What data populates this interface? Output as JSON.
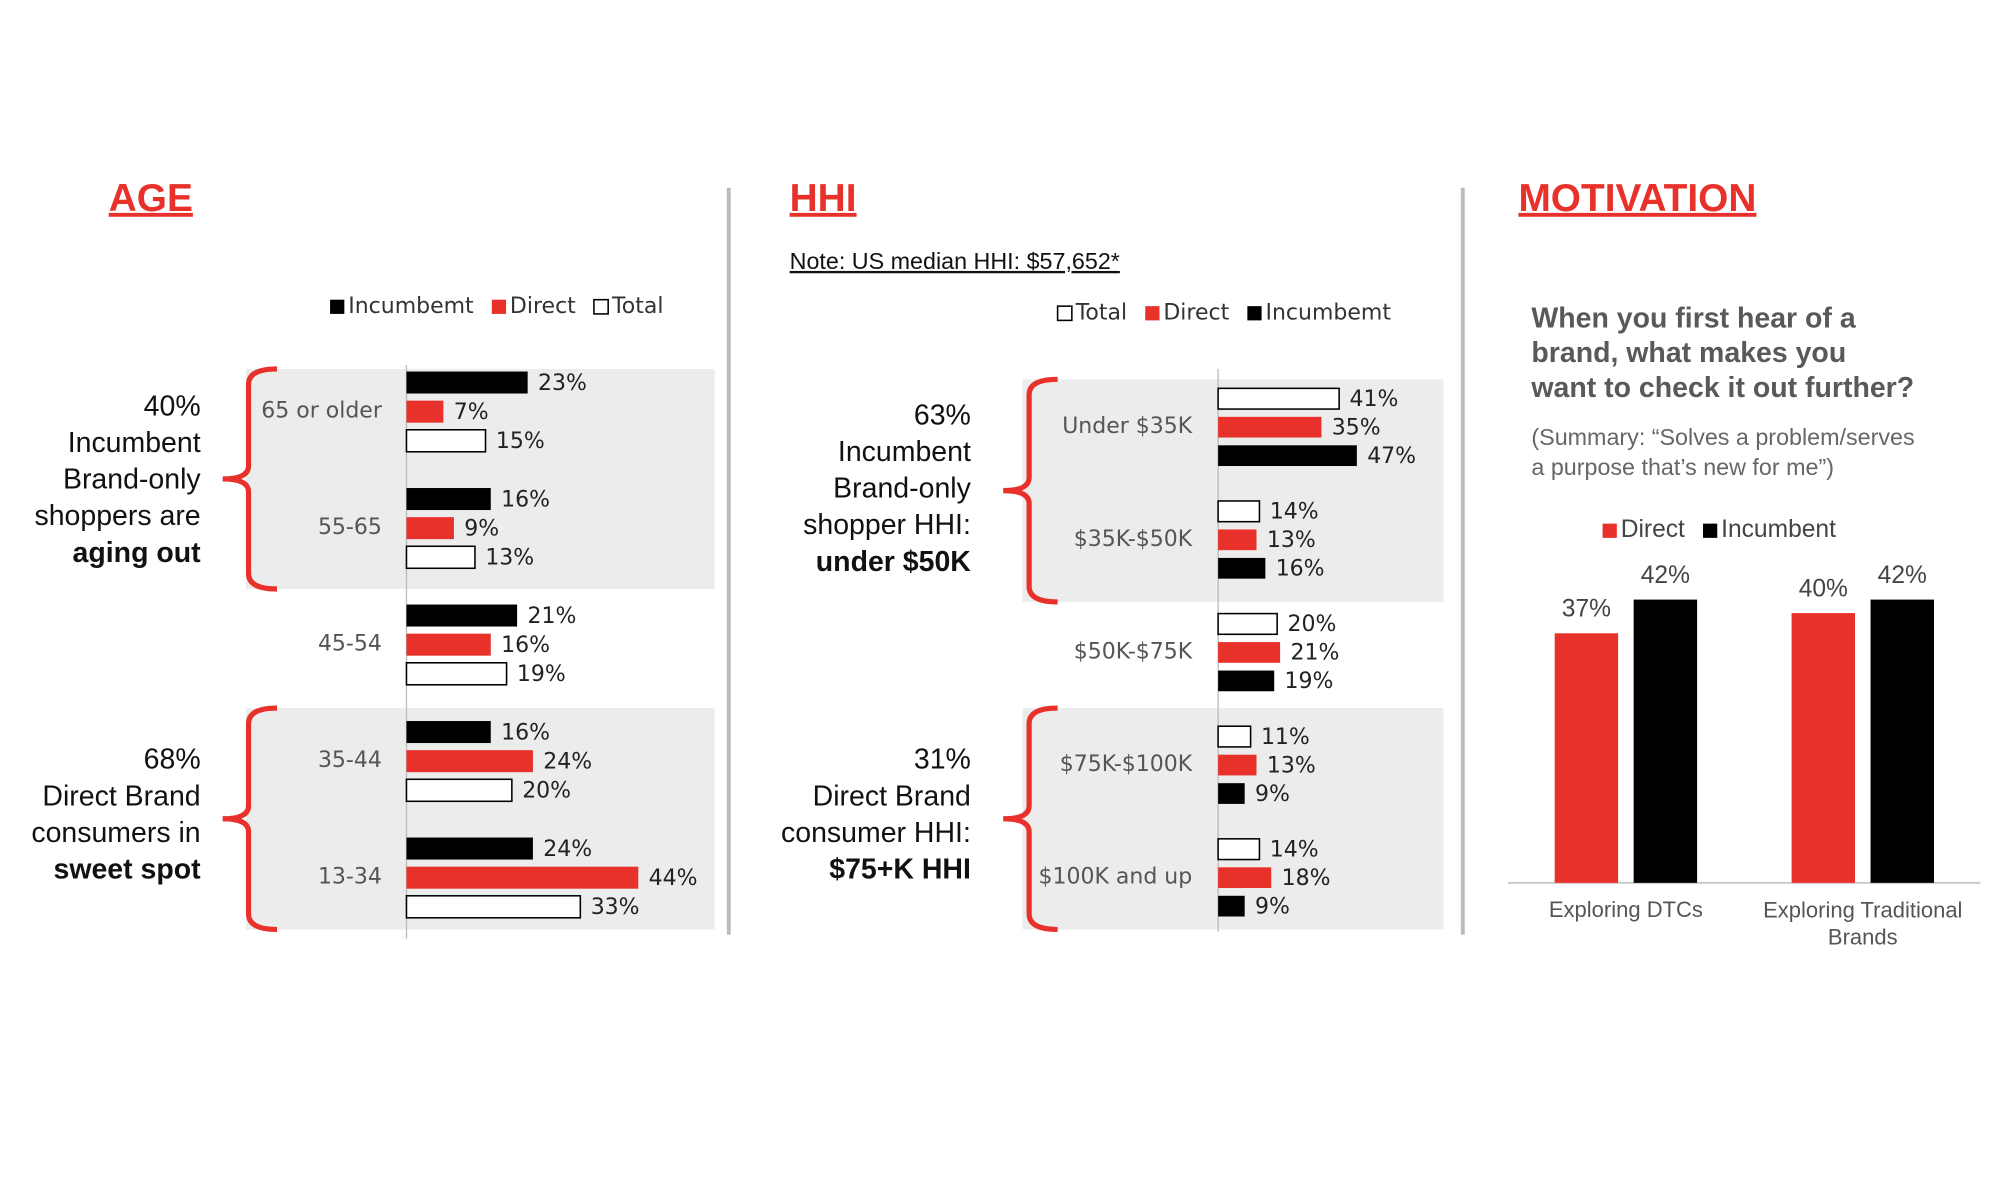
{
  "chart_data": [
    {
      "type": "bar",
      "orientation": "horizontal",
      "title": "AGE",
      "categories": [
        "65 or older",
        "55-65",
        "45-54",
        "35-44",
        "13-34"
      ],
      "series": [
        {
          "name": "Incumbemt",
          "color": "#000000",
          "values": [
            23,
            16,
            21,
            16,
            24
          ],
          "value_labels": [
            "23%",
            "16%",
            "21%",
            "16%",
            "24%"
          ]
        },
        {
          "name": "Direct",
          "color": "#e8312a",
          "values": [
            7,
            9,
            16,
            24,
            44
          ],
          "value_labels": [
            "7%",
            "9%",
            "16%",
            "24%",
            "44%"
          ]
        },
        {
          "name": "Total",
          "color": "#ffffff",
          "values": [
            15,
            13,
            19,
            20,
            33
          ],
          "value_labels": [
            "15%",
            "13%",
            "19%",
            "20%",
            "33%"
          ]
        }
      ],
      "annotations": [
        {
          "lines": [
            "40%",
            "Incumbent",
            "Brand-only",
            "shoppers are",
            "aging out"
          ]
        },
        {
          "lines": [
            "68%",
            "Direct Brand",
            "consumers in",
            "sweet spot"
          ]
        }
      ]
    },
    {
      "type": "bar",
      "orientation": "horizontal",
      "title": "HHI",
      "note": "Note:  US median HHI: $57,652*",
      "categories": [
        "Under $35K",
        "$35K-$50K",
        "$50K-$75K",
        "$75K-$100K",
        "$100K and up"
      ],
      "series": [
        {
          "name": "Total",
          "color": "#ffffff",
          "values": [
            41,
            14,
            20,
            11,
            14
          ],
          "value_labels": [
            "41%",
            "14%",
            "20%",
            "11%",
            "14%"
          ]
        },
        {
          "name": "Direct",
          "color": "#e8312a",
          "values": [
            35,
            13,
            21,
            13,
            18
          ],
          "value_labels": [
            "35%",
            "13%",
            "21%",
            "13%",
            "18%"
          ]
        },
        {
          "name": "Incumbemt",
          "color": "#000000",
          "values": [
            47,
            16,
            19,
            9,
            9
          ],
          "value_labels": [
            "47%",
            "16%",
            "19%",
            "9%",
            "9%"
          ]
        }
      ],
      "annotations": [
        {
          "lines": [
            "63%",
            "Incumbent",
            "Brand-only",
            "shopper HHI:",
            "under $50K"
          ]
        },
        {
          "lines": [
            "31%",
            "Direct Brand",
            "consumer HHI:",
            "$75+K HHI"
          ]
        }
      ]
    },
    {
      "type": "bar",
      "orientation": "vertical",
      "title": "MOTIVATION",
      "question": [
        "When you first hear of a",
        "brand, what makes you",
        "want to check it out further?"
      ],
      "summary": [
        "(Summary: “Solves a problem/serves",
        "a purpose that’s new for me”)"
      ],
      "categories": [
        "Exploring DTCs",
        "Exploring Traditional Brands"
      ],
      "series": [
        {
          "name": "Direct",
          "color": "#e8312a",
          "values": [
            37,
            40
          ],
          "value_labels": [
            "37%",
            "40%"
          ]
        },
        {
          "name": "Incumbent",
          "color": "#000000",
          "values": [
            42,
            42
          ],
          "value_labels": [
            "42%",
            "42%"
          ]
        }
      ]
    }
  ]
}
